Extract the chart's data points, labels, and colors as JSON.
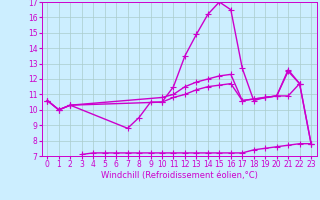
{
  "title": "",
  "xlabel": "Windchill (Refroidissement éolien,°C)",
  "xlim": [
    -0.5,
    23.5
  ],
  "ylim": [
    7,
    17
  ],
  "yticks": [
    7,
    8,
    9,
    10,
    11,
    12,
    13,
    14,
    15,
    16,
    17
  ],
  "xticks": [
    0,
    1,
    2,
    3,
    4,
    5,
    6,
    7,
    8,
    9,
    10,
    11,
    12,
    13,
    14,
    15,
    16,
    17,
    18,
    19,
    20,
    21,
    22,
    23
  ],
  "background_color": "#cceeff",
  "grid_color": "#aacccc",
  "line_color": "#cc00cc",
  "line_width": 1.0,
  "marker": "+",
  "marker_size": 4,
  "lines": [
    {
      "x": [
        0,
        1,
        2,
        7,
        8,
        9,
        10,
        11,
        12,
        13,
        14,
        15,
        16,
        17,
        18,
        19,
        20,
        21,
        22
      ],
      "y": [
        10.6,
        10.0,
        10.3,
        8.8,
        9.5,
        10.5,
        10.5,
        11.5,
        13.5,
        14.9,
        16.2,
        17.0,
        16.5,
        12.7,
        10.6,
        10.8,
        10.9,
        12.5,
        11.7
      ]
    },
    {
      "x": [
        0,
        1,
        2,
        10,
        11,
        12,
        13,
        14,
        15,
        16,
        17,
        18,
        19,
        20,
        21,
        22,
        23
      ],
      "y": [
        10.6,
        10.0,
        10.3,
        10.8,
        11.0,
        11.5,
        11.8,
        12.0,
        12.2,
        12.3,
        10.6,
        10.7,
        10.8,
        10.9,
        12.6,
        11.7,
        7.8
      ]
    },
    {
      "x": [
        0,
        1,
        2,
        10,
        11,
        12,
        13,
        14,
        15,
        16,
        17,
        18,
        19,
        20,
        21,
        22,
        23
      ],
      "y": [
        10.6,
        10.0,
        10.3,
        10.5,
        10.8,
        11.0,
        11.3,
        11.5,
        11.6,
        11.7,
        10.6,
        10.7,
        10.8,
        10.9,
        10.9,
        11.7,
        7.8
      ]
    },
    {
      "x": [
        3,
        4,
        5,
        6,
        7,
        8,
        9,
        10,
        11,
        12,
        13,
        14,
        15,
        16,
        17,
        18,
        19,
        20,
        21,
        22,
        23
      ],
      "y": [
        7.1,
        7.2,
        7.2,
        7.2,
        7.2,
        7.2,
        7.2,
        7.2,
        7.2,
        7.2,
        7.2,
        7.2,
        7.2,
        7.2,
        7.2,
        7.4,
        7.5,
        7.6,
        7.7,
        7.8,
        7.8
      ]
    }
  ]
}
